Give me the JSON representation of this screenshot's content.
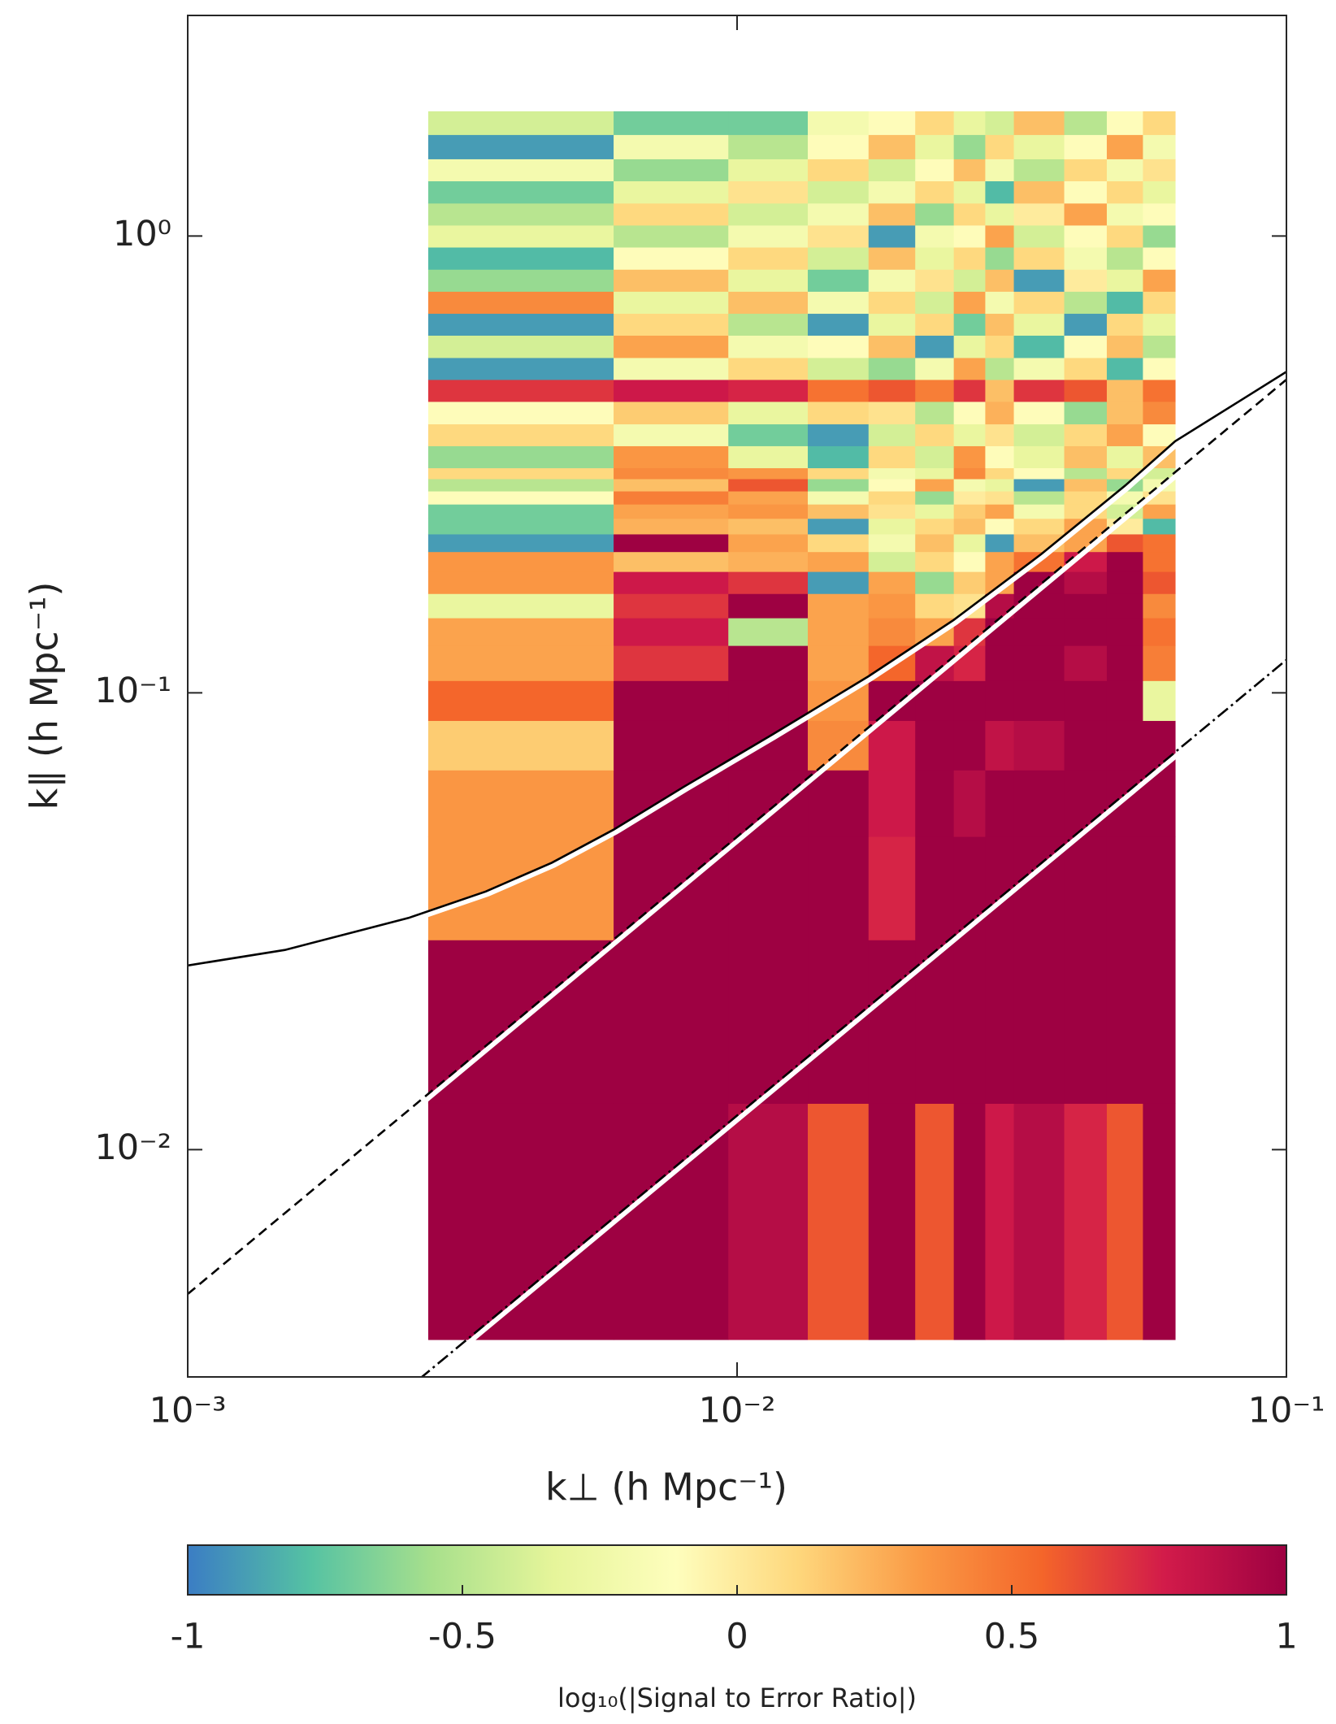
{
  "chart_data": {
    "type": "heatmap",
    "xlabel": "k⊥ (h Mpc⁻¹)",
    "ylabel": "k∥ (h Mpc⁻¹)",
    "xscale": "log",
    "yscale": "log",
    "xlim": [
      0.001,
      0.1
    ],
    "ylim": [
      0.00318,
      3.04
    ],
    "xticks": [
      {
        "value": 0.001,
        "label": "10⁻³"
      },
      {
        "value": 0.01,
        "label": "10⁻²"
      },
      {
        "value": 0.1,
        "label": "10⁻¹"
      }
    ],
    "yticks": [
      {
        "value": 0.01,
        "label": "10⁻²"
      },
      {
        "value": 0.1,
        "label": "10⁻¹"
      },
      {
        "value": 1,
        "label": "10⁰"
      }
    ],
    "x_edges": [
      0.00274,
      0.00596,
      0.00964,
      0.01345,
      0.01735,
      0.0211,
      0.0248,
      0.0283,
      0.0319,
      0.0394,
      0.0471,
      0.0548,
      0.0627
    ],
    "y_edges": [
      0.00384,
      0.01263,
      0.0288,
      0.0485,
      0.0678,
      0.087,
      0.1064,
      0.127,
      0.146,
      0.165,
      0.1844,
      0.2038,
      0.2228,
      0.241,
      0.259,
      0.2767,
      0.2943,
      0.311,
      0.3475,
      0.388,
      0.4345,
      0.4853,
      0.542,
      0.6066,
      0.6774,
      0.757,
      0.846,
      0.946,
      1.057,
      1.181,
      1.321,
      1.476,
      1.668,
      1.875
    ],
    "z": [
      [
        1,
        1,
        0.9,
        0.6,
        1,
        0.6,
        1,
        0.8,
        0.9,
        0.75,
        0.6,
        1
      ],
      [
        1,
        1,
        1,
        1,
        1,
        1,
        1,
        1,
        1,
        1,
        1,
        1
      ],
      [
        0.35,
        1,
        1,
        1,
        0.75,
        1,
        1,
        1,
        1,
        1,
        1,
        1
      ],
      [
        0.35,
        1,
        1,
        1,
        0.8,
        1,
        0.9,
        1,
        1,
        1,
        1,
        1
      ],
      [
        0.15,
        1,
        1,
        0.4,
        0.8,
        1,
        1,
        0.85,
        0.9,
        1,
        1,
        1
      ],
      [
        0.55,
        1,
        1,
        0.35,
        1,
        1,
        1,
        1,
        1,
        1,
        1,
        -0.3
      ],
      [
        0.3,
        0.7,
        1,
        0.3,
        0.55,
        0.85,
        0.75,
        1,
        1,
        0.9,
        1,
        0.45
      ],
      [
        0.3,
        0.8,
        -0.5,
        0.3,
        0.4,
        0.3,
        0.7,
        1,
        1,
        1,
        1,
        0.5
      ],
      [
        -0.3,
        0.7,
        1,
        0.3,
        0.35,
        0.1,
        0.05,
        0.9,
        1,
        1,
        1,
        0.4
      ],
      [
        0.35,
        0.8,
        0.7,
        -0.9,
        0.3,
        -0.6,
        0.15,
        0.3,
        1,
        0.9,
        1,
        0.6
      ],
      [
        0.35,
        0.2,
        0.25,
        0.3,
        -0.4,
        0.1,
        -0.1,
        0.3,
        0.5,
        0.8,
        1,
        0.5
      ],
      [
        -0.9,
        1,
        0.3,
        0.1,
        -0.2,
        0.2,
        -0.3,
        -0.9,
        0.2,
        0.3,
        0.6,
        0.5
      ],
      [
        -0.7,
        0.25,
        0.2,
        -0.9,
        -0.3,
        0.1,
        0.2,
        -0.1,
        0.1,
        0.3,
        0,
        -0.8
      ],
      [
        -0.7,
        0.3,
        0.35,
        0.2,
        0.05,
        -0.3,
        0.15,
        0.3,
        -0.2,
        0.1,
        -0.4,
        0.3
      ],
      [
        -0.1,
        0.45,
        0.3,
        -0.2,
        0.1,
        -0.6,
        0,
        0.05,
        -0.5,
        0.1,
        -0.2,
        0.05
      ],
      [
        -0.5,
        0.2,
        0.6,
        -0.6,
        -0.1,
        0.3,
        -0.2,
        -0.3,
        -0.9,
        0.2,
        -0.6,
        -0.2
      ],
      [
        0.1,
        0.4,
        0.35,
        0.1,
        -0.2,
        -0.3,
        0.4,
        0.1,
        -0.1,
        -0.5,
        0.1,
        -0.4
      ],
      [
        -0.6,
        0.35,
        -0.3,
        -0.8,
        0.1,
        -0.4,
        0.35,
        -0.1,
        -0.3,
        0.2,
        -0.3,
        0.2
      ],
      [
        0.1,
        -0.2,
        -0.7,
        -0.9,
        -0.4,
        0.1,
        -0.3,
        0.05,
        -0.4,
        0.1,
        0.3,
        -0.1
      ],
      [
        -0.1,
        0.15,
        -0.3,
        0.1,
        0.05,
        -0.5,
        -0.1,
        0.25,
        -0.1,
        -0.6,
        0.2,
        0.4
      ],
      [
        0.7,
        0.8,
        0.75,
        0.5,
        0.6,
        0.45,
        0.7,
        0.2,
        0.7,
        0.6,
        0.2,
        0.5
      ],
      [
        -0.9,
        -0.2,
        0.1,
        -0.4,
        -0.6,
        -0.2,
        0.3,
        -0.5,
        -0.2,
        0.1,
        -0.8,
        -0.1
      ],
      [
        -0.4,
        0.3,
        -0.2,
        -0.1,
        0.2,
        -0.9,
        -0.3,
        0.1,
        -0.8,
        -0.1,
        0.2,
        -0.5
      ],
      [
        -0.9,
        0.1,
        -0.5,
        -0.9,
        -0.3,
        0.1,
        -0.7,
        0.2,
        -0.3,
        -0.9,
        0.1,
        -0.3
      ],
      [
        0.4,
        -0.3,
        0.2,
        -0.2,
        0.1,
        -0.4,
        0.3,
        -0.2,
        0.1,
        -0.5,
        -0.8,
        0.1
      ],
      [
        -0.6,
        0.2,
        -0.3,
        -0.7,
        -0.2,
        0.05,
        -0.4,
        0.2,
        -0.9,
        0,
        -0.3,
        0.3
      ],
      [
        -0.8,
        -0.1,
        0.1,
        -0.4,
        0.2,
        -0.3,
        0.1,
        -0.6,
        0.1,
        -0.2,
        -0.5,
        -0.1
      ],
      [
        -0.3,
        -0.5,
        -0.2,
        0.05,
        -0.9,
        -0.2,
        -0.1,
        0.3,
        -0.4,
        -0.1,
        0.1,
        -0.6
      ],
      [
        -0.5,
        0.1,
        -0.4,
        -0.2,
        0.2,
        -0.6,
        0.1,
        -0.3,
        0,
        0.3,
        -0.2,
        -0.1
      ],
      [
        -0.7,
        -0.3,
        0.05,
        -0.4,
        -0.2,
        0.1,
        -0.3,
        -0.8,
        0.2,
        -0.1,
        0.1,
        -0.3
      ],
      [
        -0.2,
        -0.6,
        -0.3,
        0.1,
        -0.4,
        -0.1,
        0.2,
        -0.2,
        -0.5,
        0.1,
        -0.2,
        0.05
      ],
      [
        -0.9,
        -0.2,
        -0.5,
        -0.1,
        0.2,
        -0.3,
        -0.6,
        0.1,
        -0.3,
        -0.1,
        0.3,
        -0.2
      ],
      [
        -0.4,
        -0.7,
        -0.7,
        -0.2,
        -0.1,
        0.1,
        -0.3,
        -0.4,
        0.2,
        -0.5,
        -0.1,
        0.1
      ]
    ],
    "series": [
      {
        "color": "#000000",
        "style": "solid",
        "x": [
          0.001,
          0.001503,
          0.002524,
          0.003487,
          0.0046,
          0.00596,
          0.00801,
          0.01159,
          0.01735,
          0.02477,
          0.03583,
          0.0509,
          0.06272,
          0.1
        ],
        "values": [
          0.0253,
          0.02736,
          0.03215,
          0.03673,
          0.04246,
          0.05017,
          0.06233,
          0.081,
          0.1087,
          0.1443,
          0.2015,
          0.2844,
          0.3554,
          0.5045
        ]
      },
      {
        "color": "#000000",
        "style": "dashed",
        "x": [
          0.001,
          0.1
        ],
        "values": [
          0.00483,
          0.485
        ]
      },
      {
        "color": "#000000",
        "style": "dashdot",
        "x": [
          0.002644,
          0.1
        ],
        "values": [
          0.00315,
          0.1181
        ]
      }
    ],
    "colorbar": {
      "label": "log₁₀(|Signal to Error Ratio|)",
      "clim": [
        -1,
        1
      ],
      "ticks": [
        -1,
        -0.5,
        0,
        0.5,
        1
      ],
      "colors": [
        "#3b7dc4",
        "#55c2a3",
        "#a8e08c",
        "#e6f59a",
        "#fefebd",
        "#fed77c",
        "#fa9a45",
        "#f4652a",
        "#d21b4a",
        "#9e0142"
      ]
    }
  }
}
